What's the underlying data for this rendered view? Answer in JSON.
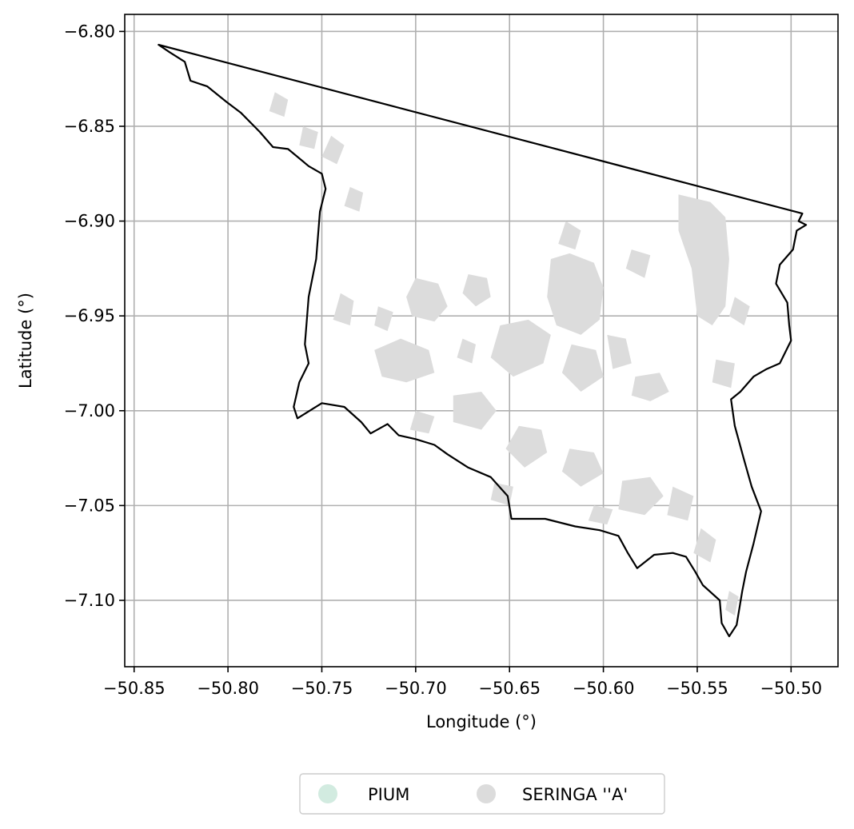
{
  "map": {
    "xlabel": "Longitude (°)",
    "ylabel": "Latitude (°)",
    "xlim": [
      -50.855,
      -50.475
    ],
    "ylim": [
      -7.135,
      -6.791
    ],
    "grid": true,
    "xticks": [
      -50.85,
      -50.8,
      -50.75,
      -50.7,
      -50.65,
      -50.6,
      -50.55,
      -50.5
    ],
    "xtick_labels": [
      "−50.85",
      "−50.80",
      "−50.75",
      "−50.70",
      "−50.65",
      "−50.60",
      "−50.55",
      "−50.50"
    ],
    "yticks": [
      -6.8,
      -6.85,
      -6.9,
      -6.95,
      -7.0,
      -7.05,
      -7.1
    ],
    "ytick_labels": [
      "−6.80",
      "−6.85",
      "−6.90",
      "−6.95",
      "−7.00",
      "−7.05",
      "−7.10"
    ],
    "boundary_color": "#000000",
    "boundary": [
      [
        -50.837,
        -6.807
      ],
      [
        -50.494,
        -6.896
      ],
      [
        -50.496,
        -6.9
      ],
      [
        -50.492,
        -6.902
      ],
      [
        -50.497,
        -6.905
      ],
      [
        -50.499,
        -6.915
      ],
      [
        -50.506,
        -6.923
      ],
      [
        -50.508,
        -6.933
      ],
      [
        -50.502,
        -6.943
      ],
      [
        -50.501,
        -6.955
      ],
      [
        -50.5,
        -6.963
      ],
      [
        -50.506,
        -6.975
      ],
      [
        -50.513,
        -6.978
      ],
      [
        -50.52,
        -6.982
      ],
      [
        -50.527,
        -6.99
      ],
      [
        -50.532,
        -6.994
      ],
      [
        -50.53,
        -7.008
      ],
      [
        -50.525,
        -7.026
      ],
      [
        -50.521,
        -7.04
      ],
      [
        -50.516,
        -7.053
      ],
      [
        -50.52,
        -7.07
      ],
      [
        -50.524,
        -7.085
      ],
      [
        -50.526,
        -7.095
      ],
      [
        -50.529,
        -7.113
      ],
      [
        -50.533,
        -7.119
      ],
      [
        -50.537,
        -7.112
      ],
      [
        -50.538,
        -7.1
      ],
      [
        -50.547,
        -7.092
      ],
      [
        -50.551,
        -7.085
      ],
      [
        -50.556,
        -7.077
      ],
      [
        -50.563,
        -7.075
      ],
      [
        -50.573,
        -7.076
      ],
      [
        -50.582,
        -7.083
      ],
      [
        -50.587,
        -7.075
      ],
      [
        -50.592,
        -7.066
      ],
      [
        -50.602,
        -7.063
      ],
      [
        -50.615,
        -7.061
      ],
      [
        -50.631,
        -7.057
      ],
      [
        -50.649,
        -7.057
      ],
      [
        -50.651,
        -7.045
      ],
      [
        -50.66,
        -7.035
      ],
      [
        -50.672,
        -7.03
      ],
      [
        -50.683,
        -7.023
      ],
      [
        -50.69,
        -7.018
      ],
      [
        -50.7,
        -7.015
      ],
      [
        -50.709,
        -7.013
      ],
      [
        -50.715,
        -7.007
      ],
      [
        -50.724,
        -7.012
      ],
      [
        -50.729,
        -7.006
      ],
      [
        -50.738,
        -6.998
      ],
      [
        -50.75,
        -6.996
      ],
      [
        -50.763,
        -7.004
      ],
      [
        -50.765,
        -6.998
      ],
      [
        -50.762,
        -6.985
      ],
      [
        -50.757,
        -6.975
      ],
      [
        -50.759,
        -6.965
      ],
      [
        -50.757,
        -6.94
      ],
      [
        -50.753,
        -6.92
      ],
      [
        -50.751,
        -6.895
      ],
      [
        -50.748,
        -6.883
      ],
      [
        -50.75,
        -6.875
      ],
      [
        -50.757,
        -6.871
      ],
      [
        -50.768,
        -6.862
      ],
      [
        -50.776,
        -6.861
      ],
      [
        -50.783,
        -6.853
      ],
      [
        -50.793,
        -6.843
      ],
      [
        -50.801,
        -6.837
      ],
      [
        -50.811,
        -6.829
      ],
      [
        -50.82,
        -6.826
      ],
      [
        -50.823,
        -6.816
      ],
      [
        -50.831,
        -6.811
      ],
      [
        -50.837,
        -6.807
      ]
    ],
    "patches": [
      [
        [
          -50.56,
          -6.886
        ],
        [
          -50.543,
          -6.89
        ],
        [
          -50.535,
          -6.898
        ],
        [
          -50.533,
          -6.92
        ],
        [
          -50.535,
          -6.945
        ],
        [
          -50.542,
          -6.955
        ],
        [
          -50.55,
          -6.95
        ],
        [
          -50.553,
          -6.925
        ],
        [
          -50.56,
          -6.905
        ]
      ],
      [
        [
          -50.628,
          -6.92
        ],
        [
          -50.618,
          -6.917
        ],
        [
          -50.605,
          -6.922
        ],
        [
          -50.6,
          -6.935
        ],
        [
          -50.602,
          -6.952
        ],
        [
          -50.612,
          -6.96
        ],
        [
          -50.625,
          -6.955
        ],
        [
          -50.63,
          -6.94
        ]
      ],
      [
        [
          -50.7,
          -6.93
        ],
        [
          -50.688,
          -6.933
        ],
        [
          -50.683,
          -6.945
        ],
        [
          -50.69,
          -6.953
        ],
        [
          -50.702,
          -6.95
        ],
        [
          -50.705,
          -6.94
        ]
      ],
      [
        [
          -50.672,
          -6.928
        ],
        [
          -50.662,
          -6.93
        ],
        [
          -50.66,
          -6.94
        ],
        [
          -50.668,
          -6.945
        ],
        [
          -50.675,
          -6.938
        ]
      ],
      [
        [
          -50.655,
          -6.955
        ],
        [
          -50.64,
          -6.952
        ],
        [
          -50.628,
          -6.96
        ],
        [
          -50.632,
          -6.975
        ],
        [
          -50.648,
          -6.982
        ],
        [
          -50.66,
          -6.972
        ]
      ],
      [
        [
          -50.722,
          -6.968
        ],
        [
          -50.708,
          -6.962
        ],
        [
          -50.693,
          -6.968
        ],
        [
          -50.69,
          -6.98
        ],
        [
          -50.705,
          -6.985
        ],
        [
          -50.718,
          -6.982
        ]
      ],
      [
        [
          -50.617,
          -6.965
        ],
        [
          -50.604,
          -6.968
        ],
        [
          -50.6,
          -6.982
        ],
        [
          -50.612,
          -6.99
        ],
        [
          -50.622,
          -6.98
        ]
      ],
      [
        [
          -50.74,
          -6.938
        ],
        [
          -50.733,
          -6.942
        ],
        [
          -50.735,
          -6.955
        ],
        [
          -50.744,
          -6.952
        ]
      ],
      [
        [
          -50.68,
          -6.992
        ],
        [
          -50.665,
          -6.99
        ],
        [
          -50.657,
          -7.0
        ],
        [
          -50.665,
          -7.01
        ],
        [
          -50.68,
          -7.006
        ]
      ],
      [
        [
          -50.7,
          -7.0
        ],
        [
          -50.69,
          -7.003
        ],
        [
          -50.693,
          -7.012
        ],
        [
          -50.703,
          -7.01
        ]
      ],
      [
        [
          -50.645,
          -7.008
        ],
        [
          -50.633,
          -7.01
        ],
        [
          -50.63,
          -7.022
        ],
        [
          -50.642,
          -7.03
        ],
        [
          -50.652,
          -7.02
        ]
      ],
      [
        [
          -50.618,
          -7.02
        ],
        [
          -50.605,
          -7.022
        ],
        [
          -50.6,
          -7.033
        ],
        [
          -50.612,
          -7.04
        ],
        [
          -50.622,
          -7.032
        ]
      ],
      [
        [
          -50.59,
          -7.037
        ],
        [
          -50.575,
          -7.035
        ],
        [
          -50.568,
          -7.045
        ],
        [
          -50.578,
          -7.055
        ],
        [
          -50.592,
          -7.052
        ]
      ],
      [
        [
          -50.563,
          -7.04
        ],
        [
          -50.552,
          -7.045
        ],
        [
          -50.555,
          -7.058
        ],
        [
          -50.566,
          -7.055
        ]
      ],
      [
        [
          -50.548,
          -7.062
        ],
        [
          -50.54,
          -7.068
        ],
        [
          -50.543,
          -7.08
        ],
        [
          -50.552,
          -7.075
        ]
      ],
      [
        [
          -50.598,
          -6.96
        ],
        [
          -50.588,
          -6.962
        ],
        [
          -50.585,
          -6.975
        ],
        [
          -50.595,
          -6.978
        ]
      ],
      [
        [
          -50.583,
          -6.982
        ],
        [
          -50.57,
          -6.98
        ],
        [
          -50.565,
          -6.99
        ],
        [
          -50.575,
          -6.995
        ],
        [
          -50.585,
          -6.992
        ]
      ],
      [
        [
          -50.62,
          -6.9
        ],
        [
          -50.612,
          -6.905
        ],
        [
          -50.615,
          -6.915
        ],
        [
          -50.624,
          -6.912
        ]
      ],
      [
        [
          -50.585,
          -6.915
        ],
        [
          -50.575,
          -6.918
        ],
        [
          -50.578,
          -6.93
        ],
        [
          -50.588,
          -6.925
        ]
      ],
      [
        [
          -50.775,
          -6.832
        ],
        [
          -50.768,
          -6.836
        ],
        [
          -50.77,
          -6.845
        ],
        [
          -50.778,
          -6.842
        ]
      ],
      [
        [
          -50.745,
          -6.855
        ],
        [
          -50.738,
          -6.86
        ],
        [
          -50.742,
          -6.87
        ],
        [
          -50.75,
          -6.866
        ]
      ],
      [
        [
          -50.53,
          -6.94
        ],
        [
          -50.522,
          -6.945
        ],
        [
          -50.525,
          -6.955
        ],
        [
          -50.533,
          -6.95
        ]
      ],
      [
        [
          -50.54,
          -6.973
        ],
        [
          -50.53,
          -6.975
        ],
        [
          -50.532,
          -6.988
        ],
        [
          -50.542,
          -6.985
        ]
      ],
      [
        [
          -50.675,
          -6.962
        ],
        [
          -50.668,
          -6.965
        ],
        [
          -50.67,
          -6.975
        ],
        [
          -50.678,
          -6.972
        ]
      ],
      [
        [
          -50.72,
          -6.945
        ],
        [
          -50.712,
          -6.948
        ],
        [
          -50.715,
          -6.958
        ],
        [
          -50.722,
          -6.955
        ]
      ],
      [
        [
          -50.658,
          -7.038
        ],
        [
          -50.648,
          -7.04
        ],
        [
          -50.65,
          -7.05
        ],
        [
          -50.66,
          -7.047
        ]
      ],
      [
        [
          -50.605,
          -7.05
        ],
        [
          -50.595,
          -7.052
        ],
        [
          -50.598,
          -7.06
        ],
        [
          -50.608,
          -7.058
        ]
      ],
      [
        [
          -50.533,
          -7.095
        ],
        [
          -50.528,
          -7.098
        ],
        [
          -50.53,
          -7.108
        ],
        [
          -50.535,
          -7.105
        ]
      ],
      [
        [
          -50.76,
          -6.85
        ],
        [
          -50.752,
          -6.853
        ],
        [
          -50.754,
          -6.862
        ],
        [
          -50.762,
          -6.86
        ]
      ],
      [
        [
          -50.735,
          -6.882
        ],
        [
          -50.728,
          -6.885
        ],
        [
          -50.73,
          -6.895
        ],
        [
          -50.738,
          -6.892
        ]
      ]
    ],
    "patch_color": "#dcdcdc",
    "grid_color": "#b0b0b0"
  },
  "legend": {
    "items": [
      {
        "label": "PIUM",
        "color": "#d2ebe0"
      },
      {
        "label": "SERINGA ''A'",
        "color": "#dcdcdc"
      }
    ]
  }
}
